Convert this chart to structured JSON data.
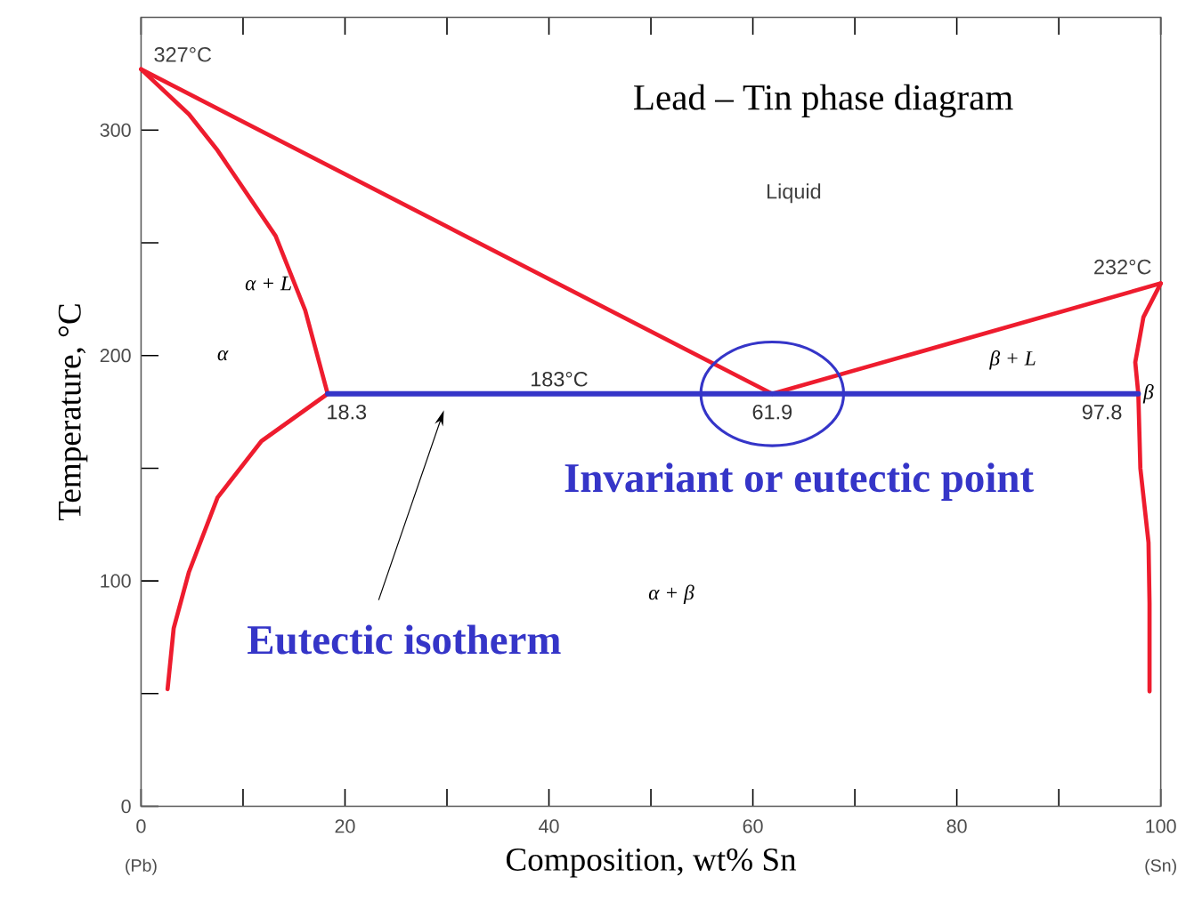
{
  "chart_data": {
    "type": "line",
    "title": "Lead – Tin phase diagram",
    "xlabel": "Composition, wt% Sn",
    "ylabel": "Temperature, °C",
    "xlim": [
      0,
      100
    ],
    "ylim": [
      0,
      350
    ],
    "xticks": [
      0,
      20,
      40,
      60,
      80,
      100
    ],
    "yticks": [
      0,
      100,
      200,
      300
    ],
    "grid": false,
    "marker": "none",
    "line_style": "solid",
    "series": [
      {
        "color": "#ee1c2e",
        "x": [
          0,
          61.9
        ],
        "values": [
          327,
          183
        ]
      },
      {
        "color": "#ee1c2e",
        "x": [
          61.9,
          100
        ],
        "values": [
          183,
          232
        ]
      },
      {
        "color": "#ee1c2e",
        "x": [
          0,
          4.7,
          7.5,
          13.2,
          16.1,
          18.3
        ],
        "values": [
          327,
          307,
          291,
          253,
          220,
          183
        ]
      },
      {
        "color": "#ee1c2e",
        "x": [
          18.3,
          11.8,
          7.5,
          4.7,
          3.2,
          2.6
        ],
        "values": [
          183,
          162,
          137,
          104,
          79,
          52
        ]
      },
      {
        "color": "#ee1c2e",
        "x": [
          100,
          98.3,
          97.5,
          97.8,
          98.0,
          98.8,
          98.9,
          98.9
        ],
        "values": [
          232,
          217,
          197,
          183,
          150,
          117,
          90,
          51
        ]
      },
      {
        "color": "#3535c8",
        "x": [
          18.3,
          97.8
        ],
        "values": [
          183,
          183
        ]
      }
    ],
    "annotations": [
      {
        "text": "327°C",
        "x": 0,
        "y": 327
      },
      {
        "text": "232°C",
        "x": 100,
        "y": 232
      },
      {
        "text": "183°C",
        "x": 41,
        "y": 183
      },
      {
        "text": "18.3",
        "x": 18.3,
        "y": 183
      },
      {
        "text": "61.9",
        "x": 61.9,
        "y": 183
      },
      {
        "text": "97.8",
        "x": 97.8,
        "y": 183
      },
      "Liquid",
      "α + L",
      "α",
      "β + L",
      "β",
      "α + β",
      "Invariant or eutectic point",
      "Eutectic isotherm",
      "(Pb)",
      "(Sn)"
    ]
  }
}
